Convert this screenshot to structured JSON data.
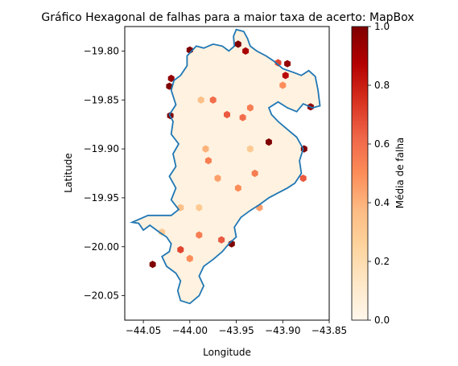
{
  "chart_data": {
    "type": "heatmap",
    "subtype": "hexbin",
    "title": "Gráfico Hexagonal de falhas para a maior taxa de acerto: MapBox",
    "xlabel": "Longitude",
    "ylabel": "Latitude",
    "xlim": [
      -44.07,
      -43.85
    ],
    "ylim": [
      -20.075,
      -19.775
    ],
    "xticks": [
      "−44.05",
      "−44.00",
      "−43.95",
      "−43.90",
      "−43.85"
    ],
    "xtick_values": [
      -44.05,
      -44.0,
      -43.95,
      -43.9,
      -43.85
    ],
    "yticks": [
      "−19.80",
      "−19.85",
      "−19.90",
      "−19.95",
      "−20.00",
      "−20.05"
    ],
    "ytick_values": [
      -19.8,
      -19.85,
      -19.9,
      -19.95,
      -20.0,
      -20.05
    ],
    "grid": false,
    "colormap": "OrRd",
    "colorbar": {
      "label": "Média de falha",
      "range": [
        0.0,
        1.0
      ],
      "ticks": [
        "0.0",
        "0.2",
        "0.4",
        "0.6",
        "0.8",
        "1.0"
      ],
      "tick_values": [
        0.0,
        0.2,
        0.4,
        0.6,
        0.8,
        1.0
      ]
    },
    "boundary_color": "#1f77b4",
    "boundary": [
      [
        -44.062,
        -19.975
      ],
      [
        -44.055,
        -19.976
      ],
      [
        -44.05,
        -19.983
      ],
      [
        -44.043,
        -19.978
      ],
      [
        -44.033,
        -19.985
      ],
      [
        -44.025,
        -19.99
      ],
      [
        -44.02,
        -19.997
      ],
      [
        -44.022,
        -20.005
      ],
      [
        -44.03,
        -20.01
      ],
      [
        -44.025,
        -20.02
      ],
      [
        -44.015,
        -20.027
      ],
      [
        -44.01,
        -20.035
      ],
      [
        -44.013,
        -20.045
      ],
      [
        -44.01,
        -20.055
      ],
      [
        -44.0,
        -20.058
      ],
      [
        -43.99,
        -20.05
      ],
      [
        -43.985,
        -20.04
      ],
      [
        -43.99,
        -20.03
      ],
      [
        -43.985,
        -20.02
      ],
      [
        -43.975,
        -20.013
      ],
      [
        -43.965,
        -20.005
      ],
      [
        -43.958,
        -19.997
      ],
      [
        -43.95,
        -19.99
      ],
      [
        -43.952,
        -19.98
      ],
      [
        -43.945,
        -19.97
      ],
      [
        -43.935,
        -19.963
      ],
      [
        -43.925,
        -19.957
      ],
      [
        -43.915,
        -19.95
      ],
      [
        -43.905,
        -19.945
      ],
      [
        -43.895,
        -19.94
      ],
      [
        -43.887,
        -19.935
      ],
      [
        -43.88,
        -19.925
      ],
      [
        -43.882,
        -19.912
      ],
      [
        -43.878,
        -19.9
      ],
      [
        -43.885,
        -19.888
      ],
      [
        -43.895,
        -19.88
      ],
      [
        -43.905,
        -19.872
      ],
      [
        -43.912,
        -19.865
      ],
      [
        -43.915,
        -19.858
      ],
      [
        -43.905,
        -19.852
      ],
      [
        -43.895,
        -19.858
      ],
      [
        -43.885,
        -19.862
      ],
      [
        -43.878,
        -19.854
      ],
      [
        -43.868,
        -19.858
      ],
      [
        -43.86,
        -19.856
      ],
      [
        -43.862,
        -19.84
      ],
      [
        -43.865,
        -19.826
      ],
      [
        -43.872,
        -19.82
      ],
      [
        -43.88,
        -19.825
      ],
      [
        -43.888,
        -19.822
      ],
      [
        -43.9,
        -19.818
      ],
      [
        -43.91,
        -19.81
      ],
      [
        -43.918,
        -19.805
      ],
      [
        -43.928,
        -19.8
      ],
      [
        -43.935,
        -19.795
      ],
      [
        -43.938,
        -19.787
      ],
      [
        -43.942,
        -19.78
      ],
      [
        -43.95,
        -19.778
      ],
      [
        -43.953,
        -19.785
      ],
      [
        -43.952,
        -19.795
      ],
      [
        -43.958,
        -19.8
      ],
      [
        -43.965,
        -19.795
      ],
      [
        -43.975,
        -19.793
      ],
      [
        -43.985,
        -19.797
      ],
      [
        -43.993,
        -19.795
      ],
      [
        -43.998,
        -19.8
      ],
      [
        -44.003,
        -19.805
      ],
      [
        -44.003,
        -19.815
      ],
      [
        -44.01,
        -19.825
      ],
      [
        -44.017,
        -19.83
      ],
      [
        -44.02,
        -19.84
      ],
      [
        -44.015,
        -19.855
      ],
      [
        -44.022,
        -19.865
      ],
      [
        -44.018,
        -19.872
      ],
      [
        -44.02,
        -19.885
      ],
      [
        -44.012,
        -19.895
      ],
      [
        -44.018,
        -19.905
      ],
      [
        -44.015,
        -19.918
      ],
      [
        -44.022,
        -19.928
      ],
      [
        -44.015,
        -19.94
      ],
      [
        -44.02,
        -19.952
      ],
      [
        -44.012,
        -19.962
      ],
      [
        -44.02,
        -19.968
      ],
      [
        -44.045,
        -19.968
      ],
      [
        -44.062,
        -19.975
      ]
    ],
    "hexbins": [
      {
        "x": -44.0,
        "y": -19.799,
        "v": 1.0
      },
      {
        "x": -43.948,
        "y": -19.793,
        "v": 1.0
      },
      {
        "x": -43.94,
        "y": -19.8,
        "v": 0.9
      },
      {
        "x": -43.905,
        "y": -19.812,
        "v": 0.7
      },
      {
        "x": -43.895,
        "y": -19.813,
        "v": 0.95
      },
      {
        "x": -43.897,
        "y": -19.825,
        "v": 0.85
      },
      {
        "x": -44.02,
        "y": -19.828,
        "v": 0.95
      },
      {
        "x": -44.022,
        "y": -19.836,
        "v": 1.0
      },
      {
        "x": -44.021,
        "y": -19.866,
        "v": 1.0
      },
      {
        "x": -43.87,
        "y": -19.857,
        "v": 0.95
      },
      {
        "x": -43.975,
        "y": -19.85,
        "v": 0.6
      },
      {
        "x": -43.96,
        "y": -19.865,
        "v": 0.65
      },
      {
        "x": -43.943,
        "y": -19.868,
        "v": 0.6
      },
      {
        "x": -43.915,
        "y": -19.893,
        "v": 1.0
      },
      {
        "x": -43.877,
        "y": -19.9,
        "v": 1.0
      },
      {
        "x": -43.878,
        "y": -19.93,
        "v": 0.65
      },
      {
        "x": -43.983,
        "y": -19.9,
        "v": 0.4
      },
      {
        "x": -43.98,
        "y": -19.912,
        "v": 0.55
      },
      {
        "x": -43.948,
        "y": -19.94,
        "v": 0.5
      },
      {
        "x": -43.99,
        "y": -19.988,
        "v": 0.55
      },
      {
        "x": -43.966,
        "y": -19.993,
        "v": 0.65
      },
      {
        "x": -43.955,
        "y": -19.997,
        "v": 1.0
      },
      {
        "x": -44.01,
        "y": -20.003,
        "v": 0.7
      },
      {
        "x": -44.0,
        "y": -20.012,
        "v": 0.5
      },
      {
        "x": -44.04,
        "y": -20.018,
        "v": 1.0
      },
      {
        "x": -43.935,
        "y": -19.858,
        "v": 0.55
      },
      {
        "x": -43.925,
        "y": -19.96,
        "v": 0.45
      },
      {
        "x": -44.01,
        "y": -19.96,
        "v": 0.35
      },
      {
        "x": -43.97,
        "y": -19.93,
        "v": 0.45
      },
      {
        "x": -43.935,
        "y": -19.9,
        "v": 0.3
      },
      {
        "x": -43.9,
        "y": -19.835,
        "v": 0.5
      },
      {
        "x": -43.988,
        "y": -19.85,
        "v": 0.35
      },
      {
        "x": -43.93,
        "y": -19.925,
        "v": 0.55
      },
      {
        "x": -44.03,
        "y": -19.985,
        "v": 0.3
      },
      {
        "x": -43.99,
        "y": -19.96,
        "v": 0.3
      }
    ]
  }
}
